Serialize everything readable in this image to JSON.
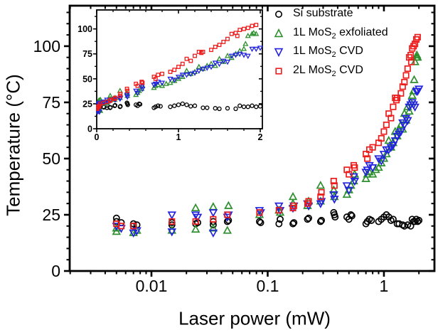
{
  "legend": {
    "items": [
      {
        "pre": "Si substrate",
        "sub": "",
        "post": ""
      },
      {
        "pre": "1L MoS",
        "sub": "2",
        "post": " exfoliated"
      },
      {
        "pre": "1L MoS",
        "sub": "2",
        "post": " CVD"
      },
      {
        "pre": "2L MoS",
        "sub": "2",
        "post": " CVD"
      }
    ]
  },
  "chart_data": {
    "type": "scatter",
    "xlabel": "Laser power (mW)",
    "ylabel": "Temperature (°C)",
    "legend_position": "top-right-inside",
    "main_axis": {
      "xscale": "log",
      "xlim": [
        0.00198,
        2.72
      ],
      "ylim": [
        0,
        118
      ],
      "xticks": [
        0.01,
        0.1,
        1
      ],
      "xtick_labels": [
        "0.01",
        "0.1",
        "1"
      ],
      "yticks": [
        0,
        25,
        50,
        75,
        100
      ],
      "ytick_labels": [
        "0",
        "25",
        "50",
        "75",
        "100"
      ],
      "grid": false
    },
    "inset_axis": {
      "xscale": "linear",
      "xlim": [
        0,
        2.026
      ],
      "ylim": [
        0,
        119
      ],
      "xticks": [
        0,
        1,
        2
      ],
      "xtick_labels": [
        "0",
        "1",
        "2"
      ],
      "x_minor_step": 0.2,
      "yticks": [
        0,
        25,
        50,
        75,
        100
      ],
      "ytick_labels": [
        "0",
        "25",
        "50",
        "75",
        "100"
      ],
      "y_minor_step": 12.5,
      "grid": false
    },
    "series": [
      {
        "name": "Si substrate",
        "marker": "circle",
        "color": "#000000",
        "points": [
          [
            0.005,
            22
          ],
          [
            0.005,
            23.5
          ],
          [
            0.0055,
            21.5
          ],
          [
            0.007,
            21
          ],
          [
            0.007,
            20
          ],
          [
            0.0075,
            20.5
          ],
          [
            0.015,
            21.5
          ],
          [
            0.015,
            20.5
          ],
          [
            0.024,
            21
          ],
          [
            0.025,
            21.5
          ],
          [
            0.034,
            22
          ],
          [
            0.034,
            20.5
          ],
          [
            0.045,
            22
          ],
          [
            0.046,
            22.5
          ],
          [
            0.085,
            22
          ],
          [
            0.087,
            21.5
          ],
          [
            0.125,
            21
          ],
          [
            0.128,
            23
          ],
          [
            0.165,
            21
          ],
          [
            0.168,
            21.5
          ],
          [
            0.22,
            23
          ],
          [
            0.225,
            23.5
          ],
          [
            0.285,
            22
          ],
          [
            0.29,
            22.5
          ],
          [
            0.37,
            26
          ],
          [
            0.375,
            25
          ],
          [
            0.38,
            24
          ],
          [
            0.48,
            24
          ],
          [
            0.5,
            23
          ],
          [
            0.52,
            25
          ],
          [
            0.53,
            24.5
          ],
          [
            0.7,
            21
          ],
          [
            0.72,
            22
          ],
          [
            0.75,
            23
          ],
          [
            0.78,
            22.5
          ],
          [
            0.9,
            22
          ],
          [
            0.95,
            23
          ],
          [
            1,
            24
          ],
          [
            1.05,
            25
          ],
          [
            1.1,
            24
          ],
          [
            1.15,
            22.5
          ],
          [
            1.2,
            23
          ],
          [
            1.3,
            21
          ],
          [
            1.35,
            21
          ],
          [
            1.45,
            20.5
          ],
          [
            1.5,
            20
          ],
          [
            1.6,
            20.5
          ],
          [
            1.7,
            20
          ],
          [
            1.75,
            23
          ],
          [
            1.8,
            22
          ],
          [
            1.85,
            22
          ],
          [
            1.9,
            23
          ],
          [
            1.95,
            22
          ],
          [
            2,
            22.5
          ]
        ]
      },
      {
        "name": "1L MoS2 exfoliated",
        "marker": "triangle-up",
        "color": "#2e8f2e",
        "points": [
          [
            0.005,
            19
          ],
          [
            0.005,
            17.5
          ],
          [
            0.007,
            17
          ],
          [
            0.0075,
            18
          ],
          [
            0.015,
            18
          ],
          [
            0.024,
            28
          ],
          [
            0.024,
            18.5
          ],
          [
            0.034,
            28.5
          ],
          [
            0.034,
            19
          ],
          [
            0.045,
            18
          ],
          [
            0.046,
            29
          ],
          [
            0.085,
            25
          ],
          [
            0.125,
            27
          ],
          [
            0.128,
            26
          ],
          [
            0.165,
            30
          ],
          [
            0.165,
            33
          ],
          [
            0.22,
            29
          ],
          [
            0.225,
            31
          ],
          [
            0.285,
            38
          ],
          [
            0.285,
            31
          ],
          [
            0.37,
            36
          ],
          [
            0.375,
            33
          ],
          [
            0.48,
            34
          ],
          [
            0.5,
            36
          ],
          [
            0.52,
            38
          ],
          [
            0.55,
            40
          ],
          [
            0.56,
            43
          ],
          [
            0.7,
            41
          ],
          [
            0.72,
            43
          ],
          [
            0.75,
            44
          ],
          [
            0.8,
            43
          ],
          [
            0.85,
            45
          ],
          [
            0.9,
            46
          ],
          [
            0.95,
            48
          ],
          [
            1,
            50
          ],
          [
            1.05,
            52
          ],
          [
            1.1,
            58
          ],
          [
            1.15,
            55
          ],
          [
            1.2,
            57
          ],
          [
            1.25,
            62
          ],
          [
            1.3,
            60
          ],
          [
            1.35,
            63
          ],
          [
            1.4,
            65
          ],
          [
            1.45,
            63
          ],
          [
            1.5,
            70
          ],
          [
            1.55,
            67
          ],
          [
            1.6,
            73
          ],
          [
            1.65,
            71
          ],
          [
            1.7,
            75
          ],
          [
            1.75,
            78
          ],
          [
            1.8,
            80
          ],
          [
            1.82,
            85
          ],
          [
            1.85,
            93
          ],
          [
            1.9,
            95
          ],
          [
            1.92,
            96
          ],
          [
            1.95,
            95
          ]
        ]
      },
      {
        "name": "1L MoS2 CVD",
        "marker": "triangle-down",
        "color": "#2222e0",
        "points": [
          [
            0.005,
            20
          ],
          [
            0.0055,
            19
          ],
          [
            0.007,
            17
          ],
          [
            0.0075,
            18
          ],
          [
            0.015,
            25
          ],
          [
            0.015,
            17.5
          ],
          [
            0.024,
            25
          ],
          [
            0.025,
            24
          ],
          [
            0.034,
            26
          ],
          [
            0.034,
            17
          ],
          [
            0.045,
            24
          ],
          [
            0.046,
            25
          ],
          [
            0.085,
            27
          ],
          [
            0.087,
            26
          ],
          [
            0.125,
            29
          ],
          [
            0.128,
            27
          ],
          [
            0.165,
            28
          ],
          [
            0.168,
            29
          ],
          [
            0.22,
            30
          ],
          [
            0.225,
            29
          ],
          [
            0.285,
            30
          ],
          [
            0.29,
            31
          ],
          [
            0.37,
            34
          ],
          [
            0.375,
            32
          ],
          [
            0.48,
            38
          ],
          [
            0.5,
            36
          ],
          [
            0.55,
            42
          ],
          [
            0.56,
            40
          ],
          [
            0.7,
            44
          ],
          [
            0.72,
            45
          ],
          [
            0.75,
            47
          ],
          [
            0.8,
            46
          ],
          [
            0.9,
            50
          ],
          [
            0.95,
            49
          ],
          [
            1,
            52
          ],
          [
            1.05,
            54
          ],
          [
            1.1,
            54
          ],
          [
            1.15,
            55
          ],
          [
            1.2,
            56
          ],
          [
            1.25,
            58
          ],
          [
            1.3,
            60
          ],
          [
            1.35,
            61
          ],
          [
            1.4,
            62
          ],
          [
            1.45,
            66
          ],
          [
            1.5,
            65
          ],
          [
            1.55,
            68
          ],
          [
            1.6,
            67
          ],
          [
            1.65,
            73
          ],
          [
            1.7,
            74
          ],
          [
            1.75,
            75
          ],
          [
            1.8,
            74
          ],
          [
            1.85,
            73
          ],
          [
            1.9,
            80
          ],
          [
            1.95,
            80
          ],
          [
            2,
            81
          ]
        ]
      },
      {
        "name": "2L MoS2 CVD",
        "marker": "square",
        "color": "#ed1c1c",
        "points": [
          [
            0.005,
            21
          ],
          [
            0.0055,
            20
          ],
          [
            0.007,
            20
          ],
          [
            0.015,
            22
          ],
          [
            0.024,
            22
          ],
          [
            0.034,
            23
          ],
          [
            0.045,
            25
          ],
          [
            0.085,
            26
          ],
          [
            0.125,
            27
          ],
          [
            0.165,
            28
          ],
          [
            0.168,
            29
          ],
          [
            0.22,
            30
          ],
          [
            0.225,
            31
          ],
          [
            0.285,
            33
          ],
          [
            0.29,
            35
          ],
          [
            0.37,
            40
          ],
          [
            0.375,
            38
          ],
          [
            0.48,
            45
          ],
          [
            0.5,
            43
          ],
          [
            0.55,
            47
          ],
          [
            0.56,
            46
          ],
          [
            0.7,
            52
          ],
          [
            0.72,
            50
          ],
          [
            0.75,
            54
          ],
          [
            0.8,
            55
          ],
          [
            0.9,
            57
          ],
          [
            0.95,
            59
          ],
          [
            1,
            62
          ],
          [
            1.05,
            65
          ],
          [
            1.1,
            70
          ],
          [
            1.15,
            68
          ],
          [
            1.2,
            73
          ],
          [
            1.25,
            77
          ],
          [
            1.28,
            76
          ],
          [
            1.3,
            77
          ],
          [
            1.4,
            79
          ],
          [
            1.45,
            82
          ],
          [
            1.5,
            84
          ],
          [
            1.55,
            87
          ],
          [
            1.6,
            90
          ],
          [
            1.65,
            95
          ],
          [
            1.7,
            96
          ],
          [
            1.72,
            93
          ],
          [
            1.75,
            99
          ],
          [
            1.8,
            100
          ],
          [
            1.85,
            101
          ],
          [
            1.9,
            103
          ],
          [
            1.95,
            104
          ]
        ]
      }
    ]
  }
}
